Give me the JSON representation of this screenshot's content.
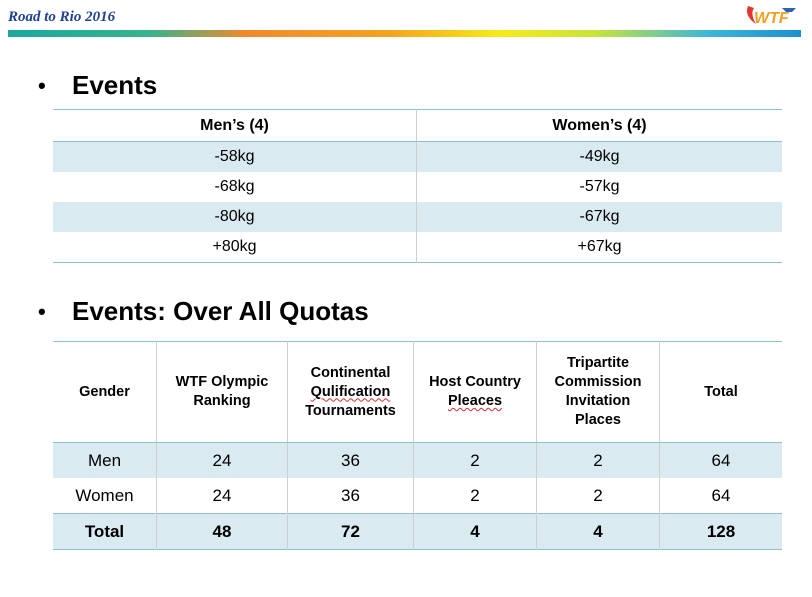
{
  "header": {
    "title": "Road to Rio 2016",
    "logo_text": "WTF"
  },
  "section1": {
    "bullet": "•",
    "heading": "Events"
  },
  "events_table": {
    "headers": [
      "Men’s (4)",
      "Women’s (4)"
    ],
    "rows": [
      [
        "-58kg",
        "-49kg"
      ],
      [
        "-68kg",
        "-57kg"
      ],
      [
        "-80kg",
        "-67kg"
      ],
      [
        "+80kg",
        "+67kg"
      ]
    ]
  },
  "section2": {
    "bullet": "•",
    "heading": "Events: Over All Quotas"
  },
  "quotas_table": {
    "headers": {
      "gender": "Gender",
      "wtf_1": "WTF Olympic",
      "wtf_2": "Ranking",
      "cont_1": "Continental",
      "cont_2": "Qulification",
      "cont_3": "Tournaments",
      "host_1": "Host Country",
      "host_2": "Pleaces",
      "tri_1": "Tripartite",
      "tri_2": "Commission",
      "tri_3": "Invitation",
      "tri_4": "Places",
      "total": "Total"
    },
    "rows": [
      [
        "Men",
        "24",
        "36",
        "2",
        "2",
        "64"
      ],
      [
        "Women",
        "24",
        "36",
        "2",
        "2",
        "64"
      ],
      [
        "Total",
        "48",
        "72",
        "4",
        "4",
        "128"
      ]
    ]
  },
  "colors": {
    "title": "#1f3f8f",
    "row_shade": "#d9ebf0",
    "rule": "#8cc2cf"
  }
}
